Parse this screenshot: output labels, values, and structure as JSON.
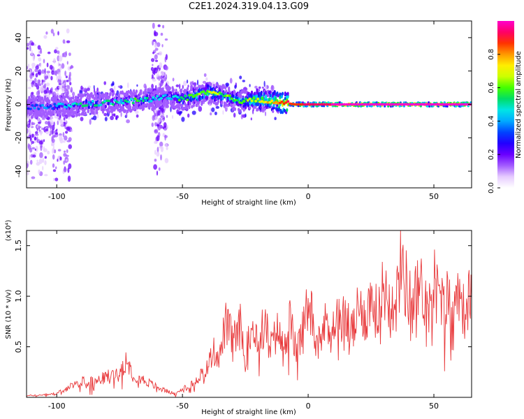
{
  "title": "C2E1.2024.319.04.13.G09",
  "colors": {
    "snr_line": "#e8383a",
    "colormap": [
      "#ffffff",
      "#e6ccff",
      "#a35cff",
      "#6a00ff",
      "#2200ff",
      "#0044ff",
      "#00aaff",
      "#00e5e5",
      "#00dd66",
      "#44ff00",
      "#ccff00",
      "#ffee00",
      "#ff9900",
      "#ff3300",
      "#ff0066",
      "#ff00cc"
    ]
  },
  "chart_data": [
    {
      "type": "heatmap",
      "xlabel": "Height of straight line (km)",
      "ylabel": "Frequency (Hz)",
      "xlim": [
        -112,
        65
      ],
      "ylim": [
        -50,
        50
      ],
      "xticks": [
        -100,
        -50,
        0,
        50
      ],
      "yticks": [
        40,
        20,
        0,
        -20,
        -40
      ],
      "ridge": {
        "x": [
          -112,
          -100,
          -90,
          -80,
          -70,
          -62,
          -55,
          -50,
          -45,
          -40,
          -35,
          -30,
          -25,
          -20,
          -15,
          -10,
          -5,
          0,
          10,
          20,
          30,
          40,
          50,
          60,
          65
        ],
        "frequency": [
          -2,
          -1,
          0,
          1,
          2,
          3,
          5,
          3,
          5,
          7,
          6,
          3,
          2,
          3,
          2,
          1,
          0,
          0,
          0,
          0,
          0,
          0,
          0,
          0,
          0
        ],
        "amplitude": [
          0.25,
          0.35,
          0.4,
          0.4,
          0.45,
          0.4,
          0.35,
          0.5,
          0.55,
          0.6,
          0.55,
          0.5,
          0.55,
          0.65,
          0.7,
          0.8,
          0.85,
          0.9,
          0.95,
          0.95,
          0.95,
          0.95,
          0.95,
          0.95,
          0.95
        ]
      },
      "colorbar": {
        "label": "Normalized spectral amplitude",
        "range": [
          0,
          1
        ],
        "ticks": [
          0.0,
          0.2,
          0.4,
          0.6,
          0.8
        ]
      }
    },
    {
      "type": "line",
      "xlabel": "Height of straight line (km)",
      "ylabel": "SNR (10 * v/v)",
      "multiplier": "(x10⁴)",
      "xlim": [
        -112,
        65
      ],
      "ylim": [
        0,
        1.65
      ],
      "xticks": [
        -100,
        -50,
        0,
        50
      ],
      "yticks": [
        0.5,
        1.0,
        1.5
      ],
      "series": [
        {
          "x": [
            -112,
            -105,
            -100,
            -95,
            -90,
            -85,
            -80,
            -75,
            -72,
            -70,
            -65,
            -60,
            -55,
            -52,
            -50,
            -47,
            -45,
            -42,
            -40,
            -38,
            -35,
            -33,
            -30,
            -27,
            -25,
            -22,
            -20,
            -17,
            -15,
            -12,
            -10,
            -7,
            -5,
            -2,
            0,
            3,
            5,
            8,
            10,
            13,
            15,
            18,
            20,
            23,
            25,
            28,
            30,
            33,
            35,
            37,
            40,
            42,
            45,
            48,
            50,
            53,
            55,
            58,
            60,
            62,
            65
          ],
          "y": [
            0.02,
            0.03,
            0.05,
            0.12,
            0.2,
            0.18,
            0.25,
            0.3,
            0.48,
            0.28,
            0.2,
            0.12,
            0.06,
            0.05,
            0.1,
            0.16,
            0.2,
            0.3,
            0.35,
            0.55,
            0.5,
            0.88,
            0.7,
            0.85,
            0.5,
            0.9,
            0.7,
            0.88,
            0.6,
            0.8,
            0.6,
            0.93,
            0.55,
            0.8,
            1.15,
            0.8,
            0.75,
            0.95,
            0.85,
            1.0,
            0.9,
            0.8,
            1.05,
            0.95,
            1.2,
            0.95,
            1.35,
            1.1,
            1.15,
            1.65,
            1.2,
            1.2,
            1.3,
            1.05,
            1.4,
            1.1,
            1.2,
            1.0,
            1.35,
            1.0,
            1.25
          ]
        }
      ]
    }
  ]
}
